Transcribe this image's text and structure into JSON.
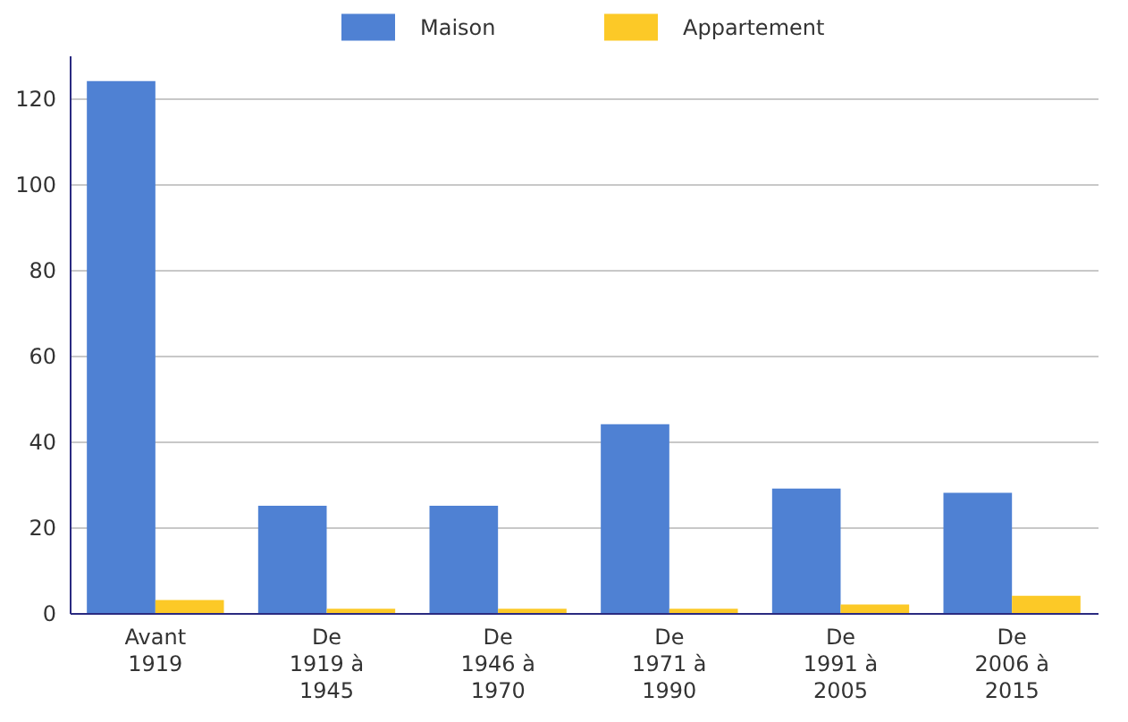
{
  "chart_data": {
    "type": "bar",
    "categories": [
      "Avant 1919",
      "De 1919 à 1945",
      "De 1946 à 1970",
      "De 1971 à 1990",
      "De 1991 à 2005",
      "De 2006 à 2015"
    ],
    "series": [
      {
        "name": "Maison",
        "color": "#4f81d3",
        "values": [
          124,
          25,
          25,
          44,
          29,
          28
        ]
      },
      {
        "name": "Appartement",
        "color": "#fcc927",
        "values": [
          3,
          1,
          1,
          1,
          2,
          4
        ]
      }
    ],
    "ylim": [
      0,
      130
    ],
    "yticks": [
      0,
      20,
      40,
      60,
      80,
      100,
      120
    ],
    "grid": "y",
    "legend": "top"
  }
}
